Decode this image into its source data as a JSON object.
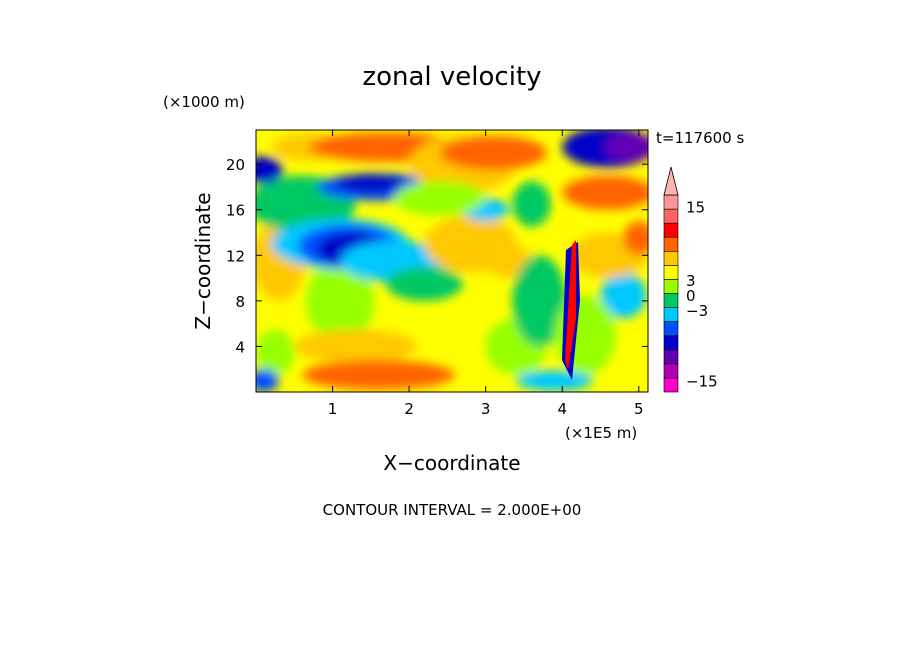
{
  "chart_data": {
    "type": "heatmap",
    "title": "zonal velocity",
    "xlabel": "X−coordinate",
    "ylabel": "Z−coordinate",
    "x_unit": "(×1E5 m)",
    "y_unit": "(×1000 m)",
    "time_label": "t=117600 s",
    "footer": "CONTOUR INTERVAL = 2.000E+00",
    "xlim": [
      0,
      5.12
    ],
    "ylim": [
      0,
      23
    ],
    "x_ticks": [
      "1",
      "2",
      "3",
      "4",
      "5"
    ],
    "x_tick_values": [
      1,
      2,
      3,
      4,
      5
    ],
    "y_ticks": [
      "4",
      "8",
      "12",
      "16",
      "20"
    ],
    "y_tick_values": [
      4,
      8,
      12,
      16,
      20
    ],
    "colorbar": {
      "labels": [
        "15",
        "3",
        "0",
        "−3",
        "−15"
      ],
      "label_values": [
        15,
        3,
        0,
        -3,
        -15
      ],
      "colors": [
        "#ff00c8",
        "#b400b4",
        "#6400b4",
        "#0000c8",
        "#0050ff",
        "#00c8ff",
        "#00c864",
        "#96ff00",
        "#ffff00",
        "#ffc800",
        "#ff6400",
        "#ff0000",
        "#ff6464",
        "#ff9696"
      ]
    },
    "grid": false,
    "legend": "right"
  }
}
